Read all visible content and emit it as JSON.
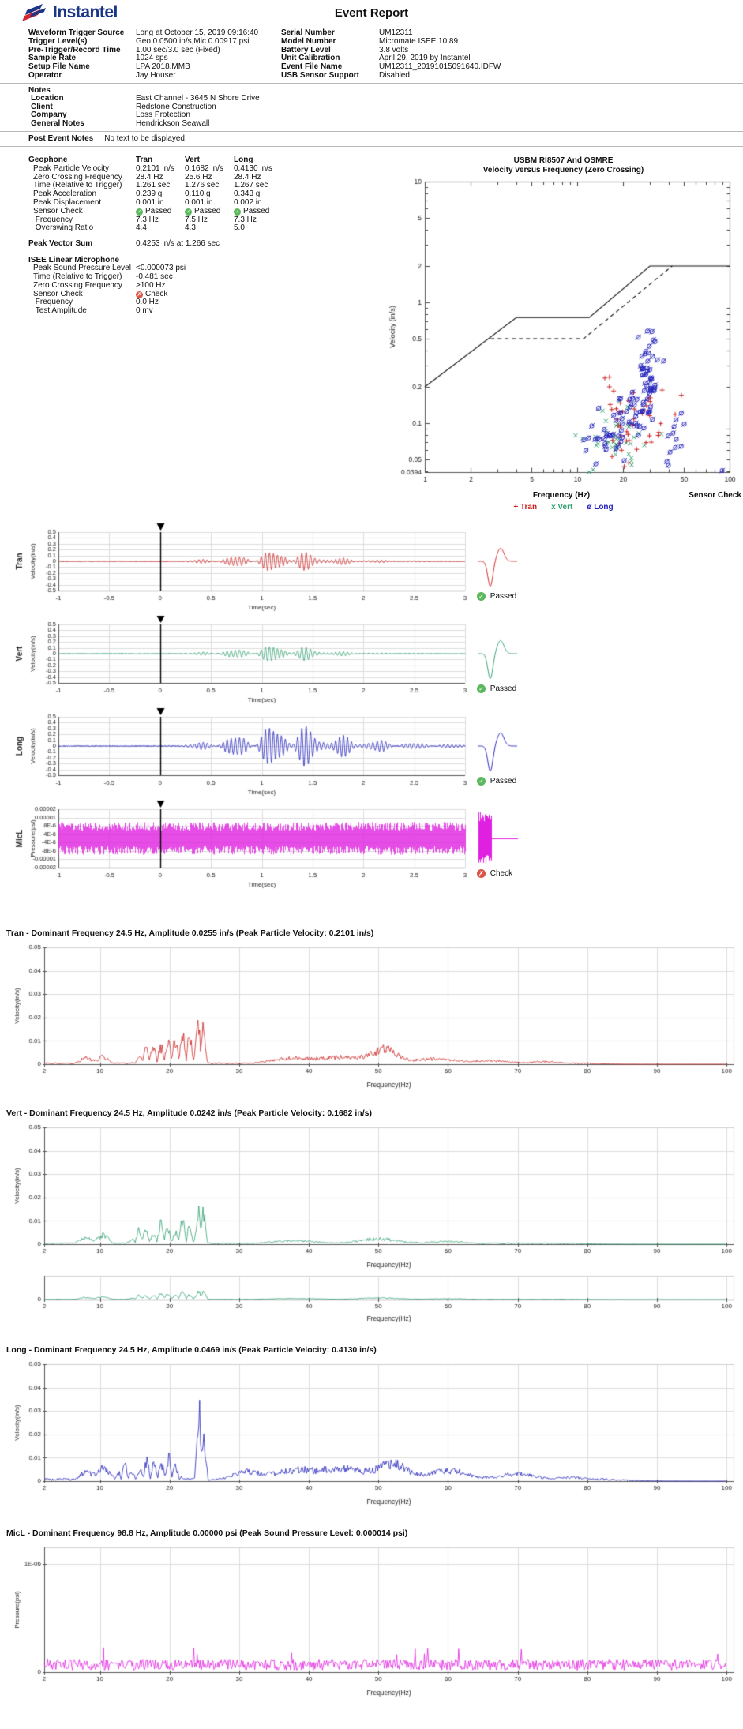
{
  "page": {
    "brand": "Instantel",
    "title": "Event Report"
  },
  "header": {
    "info_left": [
      {
        "label": "Waveform Trigger Source",
        "value": "Long at October 15, 2019 09:16:40"
      },
      {
        "label": "Trigger Level(s)",
        "value": "Geo 0.0500 in/s,Mic 0.00917 psi"
      },
      {
        "label": "Pre-Trigger/Record Time",
        "value": "1.00 sec/3.0 sec (Fixed)"
      },
      {
        "label": "Sample Rate",
        "value": "1024 sps"
      },
      {
        "label": "Setup File Name",
        "value": "LPA 2018.MMB"
      },
      {
        "label": "Operator",
        "value": "Jay Houser"
      }
    ],
    "info_right": [
      {
        "label": "Serial Number",
        "value": "UM12311"
      },
      {
        "label": "Model Number",
        "value": "Micromate ISEE 10.89"
      },
      {
        "label": "Battery Level",
        "value": "3.8 volts"
      },
      {
        "label": "Unit Calibration",
        "value": "April 29, 2019 by Instantel"
      },
      {
        "label": "Event File Name",
        "value": "UM12311_20191015091640.IDFW"
      },
      {
        "label": "USB Sensor Support",
        "value": "Disabled"
      }
    ]
  },
  "notes": {
    "heading": "Notes",
    "rows": [
      {
        "label": "Location",
        "value": "East Channel - 3645 N Shore Drive"
      },
      {
        "label": "Client",
        "value": "Redstone Construction"
      },
      {
        "label": "Company",
        "value": "Loss Protection"
      },
      {
        "label": "General Notes",
        "value": "Hendrickson Seawall"
      }
    ]
  },
  "post_event_notes": {
    "label": "Post Event Notes",
    "value": "No text to be displayed."
  },
  "geophone": {
    "heading": "Geophone",
    "columns": [
      "Tran",
      "Vert",
      "Long"
    ],
    "rows": [
      {
        "label": "Peak Particle Velocity",
        "values": [
          "0.2101 in/s",
          "0.1682 in/s",
          "0.4130 in/s"
        ]
      },
      {
        "label": "Zero Crossing Frequency",
        "values": [
          "28.4 Hz",
          "25.6 Hz",
          "28.4 Hz"
        ]
      },
      {
        "label": "Time (Relative to Trigger)",
        "values": [
          "1.261 sec",
          "1.276 sec",
          "1.267 sec"
        ]
      },
      {
        "label": "Peak Acceleration",
        "values": [
          "0.239 g",
          "0.110 g",
          "0.343 g"
        ]
      },
      {
        "label": "Peak Displacement",
        "values": [
          "0.001 in",
          "0.001 in",
          "0.002 in"
        ]
      }
    ],
    "sensor_check": {
      "label": "Sensor Check",
      "values": [
        "Passed",
        "Passed",
        "Passed"
      ],
      "status": "pass"
    },
    "sub_rows": [
      {
        "label": "Frequency",
        "values": [
          "7.3 Hz",
          "7.5 Hz",
          "7.3 Hz"
        ]
      },
      {
        "label": "Overswing Ratio",
        "values": [
          "4.4",
          "4.3",
          "5.0"
        ]
      }
    ],
    "peak_vector_sum": {
      "label": "Peak Vector Sum",
      "value": "0.4253 in/s at 1.266 sec"
    }
  },
  "microphone": {
    "heading": "ISEE Linear Microphone",
    "rows": [
      {
        "label": "Peak Sound Pressure Level",
        "value": "<0.000073 psi"
      },
      {
        "label": "Time (Relative to Trigger)",
        "value": "-0.481 sec"
      },
      {
        "label": "Zero Crossing Frequency",
        "value": ">100 Hz"
      }
    ],
    "sensor_check": {
      "label": "Sensor Check",
      "value": "Check",
      "status": "fail"
    },
    "sub_rows": [
      {
        "label": "Frequency",
        "value": "0.0 Hz"
      },
      {
        "label": "Test Amplitude",
        "value": "0 mv"
      }
    ]
  },
  "colors": {
    "tran": "#cc2222",
    "vert": "#2f9e6e",
    "long": "#2020bb",
    "mic": "#e020e0",
    "pass": "#5cb85c",
    "fail": "#dd5544",
    "brand_blue": "#1c3687",
    "brand_red": "#d22630",
    "grid": "#dcdcdc",
    "axis": "#555555"
  },
  "waveform_section": {
    "xlabel": "Time(sec)",
    "channels": [
      {
        "name": "Tran",
        "ylabel": "Velocity(in/s)",
        "check_label": "Passed",
        "status": "pass"
      },
      {
        "name": "Vert",
        "ylabel": "Velocity(in/s)",
        "check_label": "Passed",
        "status": "pass"
      },
      {
        "name": "Long",
        "ylabel": "Velocity(in/s)",
        "check_label": "Passed",
        "status": "pass"
      },
      {
        "name": "MicL",
        "ylabel": "Pressure(psi)",
        "check_label": "Check",
        "status": "fail"
      }
    ]
  },
  "chart_data": [
    {
      "id": "usbm_scatter",
      "type": "scatter",
      "title": "USBM RI8507 And OSMRE",
      "subtitle": "Velocity versus Frequency (Zero Crossing)",
      "xlabel": "Frequency (Hz)",
      "ylabel": "Velocity (in/s)",
      "corner_label": "Sensor Check",
      "x_scale": "log",
      "y_scale": "log",
      "xlim": [
        1,
        100
      ],
      "ylim": [
        0.0394,
        10
      ],
      "xticks": [
        1,
        2,
        5,
        10,
        20,
        50,
        100
      ],
      "yticks": [
        10,
        5,
        2,
        1,
        0.5,
        0.2,
        0.1,
        0.05,
        0.0394
      ],
      "limit_lines": [
        {
          "name": "USBM RI8507",
          "style": "solid",
          "points": [
            [
              1,
              0.2
            ],
            [
              4,
              0.75
            ],
            [
              12,
              0.75
            ],
            [
              30,
              2
            ],
            [
              100,
              2
            ]
          ]
        },
        {
          "name": "OSMRE",
          "style": "dashed",
          "points": [
            [
              2.7,
              0.5
            ],
            [
              11,
              0.5
            ],
            [
              42,
              2
            ]
          ]
        }
      ],
      "legend": [
        {
          "glyph": "+",
          "label": "Tran",
          "color": "#cc2222"
        },
        {
          "glyph": "x",
          "label": "Vert",
          "color": "#2f9e6e"
        },
        {
          "glyph": "ø",
          "label": "Long",
          "color": "#2020bb"
        }
      ],
      "synthetic_points": true,
      "series": [
        {
          "name": "Vert",
          "marker": "cross",
          "color": "#2f9e6e",
          "seed": 22,
          "clusters": [
            {
              "n": 42,
              "cf": 1.27,
              "sf": 0.09,
              "cv": -1.08,
              "sv": 0.13,
              "corr": 0.4
            }
          ]
        },
        {
          "name": "Tran",
          "marker": "plus",
          "color": "#cc2222",
          "seed": 11,
          "clusters": [
            {
              "n": 48,
              "cf": 1.38,
              "sf": 0.13,
              "cv": -0.97,
              "sv": 0.17,
              "corr": 0.2
            }
          ]
        },
        {
          "name": "Long",
          "marker": "oslash",
          "color": "#2020bb",
          "seed": 33,
          "clusters": [
            {
              "n": 72,
              "cf": 1.43,
              "sf": 0.07,
              "cv": -0.72,
              "sv": 0.18,
              "corr": 1.4
            },
            {
              "n": 30,
              "cf": 1.19,
              "sf": 0.08,
              "cv": -1.1,
              "sv": 0.11,
              "corr": 0.3
            },
            {
              "n": 12,
              "cf": 1.64,
              "sf": 0.06,
              "cv": -1.12,
              "sv": 0.13,
              "corr": 0
            },
            {
              "n": 1,
              "cf": 1.95,
              "sf": 0.005,
              "cv": -1.39,
              "sv": 0.005,
              "corr": 0
            }
          ]
        }
      ]
    },
    {
      "id": "waveform_tran",
      "type": "line",
      "channel": "Tran",
      "color": "#cc2222",
      "ylabel": "Velocity(in/s)",
      "xlabel": "Time(sec)",
      "xlim": [
        -1,
        3
      ],
      "xticks": [
        -1,
        -0.5,
        0,
        0.5,
        1,
        1.5,
        2,
        2.5,
        3
      ],
      "yticks": [
        0.5,
        0.4,
        0.3,
        0.2,
        0.1,
        0,
        -0.1,
        -0.2,
        -0.3,
        -0.4,
        -0.5
      ],
      "peak": 0.21,
      "dominant_freq": 24.5,
      "decay_tau": 0.38,
      "trigger_time": 0,
      "seed": 101,
      "sensor_check": {
        "result": "Passed",
        "pulse": "geo"
      }
    },
    {
      "id": "waveform_vert",
      "type": "line",
      "channel": "Vert",
      "color": "#2f9e6e",
      "ylabel": "Velocity(in/s)",
      "xlabel": "Time(sec)",
      "xlim": [
        -1,
        3
      ],
      "xticks": [
        -1,
        -0.5,
        0,
        0.5,
        1,
        1.5,
        2,
        2.5,
        3
      ],
      "yticks": [
        0.5,
        0.4,
        0.3,
        0.2,
        0.1,
        0,
        -0.1,
        -0.2,
        -0.3,
        -0.4,
        -0.5
      ],
      "peak": 0.168,
      "dominant_freq": 24.5,
      "decay_tau": 0.32,
      "trigger_time": 0,
      "seed": 102,
      "sensor_check": {
        "result": "Passed",
        "pulse": "geo"
      }
    },
    {
      "id": "waveform_long",
      "type": "line",
      "channel": "Long",
      "color": "#2020bb",
      "ylabel": "Velocity(in/s)",
      "xlabel": "Time(sec)",
      "xlim": [
        -1,
        3
      ],
      "xticks": [
        -1,
        -0.5,
        0,
        0.5,
        1,
        1.5,
        2,
        2.5,
        3
      ],
      "yticks": [
        0.5,
        0.4,
        0.3,
        0.2,
        0.1,
        0,
        -0.1,
        -0.2,
        -0.3,
        -0.4,
        -0.5
      ],
      "peak": 0.413,
      "dominant_freq": 24.5,
      "decay_tau": 0.6,
      "trigger_time": 0,
      "seed": 103,
      "sensor_check": {
        "result": "Passed",
        "pulse": "geo"
      }
    },
    {
      "id": "waveform_mic",
      "type": "line",
      "channel": "MicL",
      "color": "#e020e0",
      "ylabel": "Pressure(psi)",
      "xlabel": "Time(sec)",
      "xlim": [
        -1,
        3
      ],
      "xticks": [
        -1,
        -0.5,
        0,
        0.5,
        1,
        1.5,
        2,
        2.5,
        3
      ],
      "ytick_labels": [
        "0.00002",
        "0.00001",
        "8E-6",
        "4E-6",
        "-4E-6",
        "-8E-6",
        "-0.00001",
        "-0.00002"
      ],
      "noise_amp": 8e-06,
      "trigger_time": 0,
      "seed": 104,
      "sensor_check": {
        "result": "Check",
        "pulse": "noise"
      }
    },
    {
      "id": "spectrum_tran",
      "type": "line",
      "title": "Tran - Dominant Frequency 24.5 Hz, Amplitude 0.0255 in/s (Peak Particle Velocity: 0.2101 in/s)",
      "color": "#cc2222",
      "xlabel": "Frequency(Hz)",
      "ylabel": "Velocity(in/s)",
      "xlim": [
        2,
        101
      ],
      "xticks": [
        2,
        10,
        20,
        30,
        40,
        50,
        60,
        70,
        80,
        90,
        100
      ],
      "ylim": [
        0,
        0.05
      ],
      "yticks": [
        0.05,
        0.04,
        0.03,
        0.02,
        0.01,
        0
      ],
      "dominant_freq": 24.5,
      "amplitude": 0.0255,
      "peaks": [
        [
          8,
          0.0035,
          1.2
        ],
        [
          10.5,
          0.004,
          1
        ],
        [
          17,
          0.009,
          1.6
        ],
        [
          20,
          0.013,
          1.5
        ],
        [
          22.5,
          0.015,
          1.2
        ],
        [
          24.5,
          0.0255,
          0.7
        ],
        [
          37,
          0.003,
          4
        ],
        [
          45,
          0.004,
          5
        ],
        [
          51,
          0.0075,
          2.5
        ],
        [
          58,
          0.003,
          4
        ],
        [
          66,
          0.002,
          4
        ],
        [
          74,
          0.0015,
          3
        ]
      ],
      "comb": [
        14,
        27
      ],
      "floor": 0.0007,
      "cutoff": 80,
      "seed": 201
    },
    {
      "id": "spectrum_vert",
      "type": "line",
      "title": "Vert - Dominant Frequency 24.5 Hz, Amplitude 0.0242 in/s (Peak Particle Velocity: 0.1682 in/s)",
      "color": "#2f9e6e",
      "xlabel": "Frequency(Hz)",
      "ylabel": "Velocity(in/s)",
      "xlim": [
        2,
        101
      ],
      "xticks": [
        2,
        10,
        20,
        30,
        40,
        50,
        60,
        70,
        80,
        90,
        100
      ],
      "ylim": [
        0,
        0.05
      ],
      "yticks": [
        0.05,
        0.04,
        0.03,
        0.02,
        0.01,
        0
      ],
      "dominant_freq": 24.5,
      "amplitude": 0.0242,
      "peaks": [
        [
          8,
          0.004,
          1.2
        ],
        [
          10.5,
          0.005,
          1
        ],
        [
          16,
          0.008,
          1.4
        ],
        [
          19,
          0.011,
          1.4
        ],
        [
          22,
          0.013,
          1.2
        ],
        [
          24.5,
          0.0242,
          0.7
        ],
        [
          38,
          0.002,
          5
        ],
        [
          50,
          0.003,
          4
        ],
        [
          60,
          0.0015,
          4
        ]
      ],
      "comb": [
        14,
        27
      ],
      "floor": 0.0006,
      "cutoff": 78,
      "seed": 202
    },
    {
      "id": "spectrum_vert_small",
      "type": "line",
      "small": true,
      "source": "spectrum_vert",
      "color": "#2f9e6e",
      "xlabel": "Frequency(Hz)",
      "xlim": [
        2,
        101
      ],
      "xticks": [
        2,
        10,
        20,
        30,
        40,
        50,
        60,
        70,
        80,
        90,
        100
      ],
      "ylim": [
        0,
        0.035
      ],
      "yticks": [
        0
      ],
      "seed": 212
    },
    {
      "id": "spectrum_long",
      "type": "line",
      "title": "Long - Dominant Frequency 24.5 Hz, Amplitude 0.0469 in/s (Peak Particle Velocity: 0.4130 in/s)",
      "color": "#2020bb",
      "xlabel": "Frequency(Hz)",
      "ylabel": "Velocity(in/s)",
      "xlim": [
        2,
        101
      ],
      "xticks": [
        2,
        10,
        20,
        30,
        40,
        50,
        60,
        70,
        80,
        90,
        100
      ],
      "ylim": [
        0,
        0.05
      ],
      "yticks": [
        0.05,
        0.04,
        0.03,
        0.02,
        0.01,
        0
      ],
      "dominant_freq": 24.5,
      "amplitude": 0.0469,
      "peaks": [
        [
          8,
          0.005,
          1.3
        ],
        [
          10.5,
          0.0085,
          1
        ],
        [
          13.5,
          0.008,
          1.2
        ],
        [
          17,
          0.011,
          1.6
        ],
        [
          20,
          0.012,
          1.4
        ],
        [
          24.5,
          0.0469,
          0.65
        ],
        [
          31,
          0.005,
          3
        ],
        [
          38,
          0.006,
          4
        ],
        [
          45,
          0.007,
          4
        ],
        [
          52,
          0.0095,
          3
        ],
        [
          60,
          0.006,
          4
        ],
        [
          70,
          0.004,
          4
        ],
        [
          78,
          0.002,
          3
        ]
      ],
      "comb": [
        12,
        27
      ],
      "floor": 0.0012,
      "cutoff": 84,
      "seed": 203
    },
    {
      "id": "spectrum_mic",
      "type": "line",
      "title": "MicL - Dominant Frequency 98.8 Hz, Amplitude 0.00000 psi (Peak Sound Pressure Level: 0.000014 psi)",
      "color": "#e020e0",
      "xlabel": "Frequency(Hz)",
      "ylabel": "Pressure(psi)",
      "xlim": [
        2,
        101
      ],
      "xticks": [
        2,
        10,
        20,
        30,
        40,
        50,
        60,
        70,
        80,
        90,
        100
      ],
      "ylim": [
        0,
        1.15e-06
      ],
      "yticks_special": [
        {
          "value": 1e-06,
          "label": "1E-06"
        },
        {
          "value": 0,
          "label": "0"
        }
      ],
      "dominant_freq": 98.8,
      "noise_level": 1.2e-07,
      "seed": 204
    }
  ]
}
